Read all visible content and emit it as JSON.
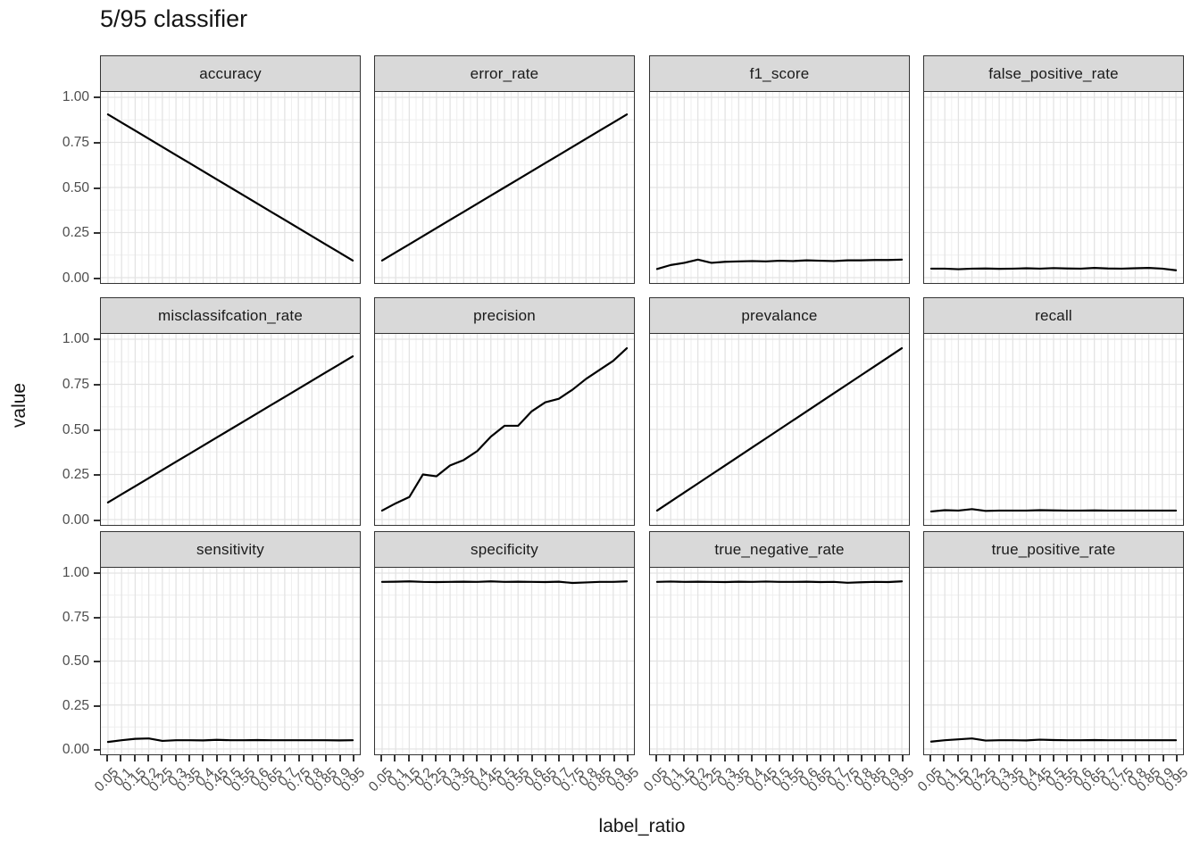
{
  "title": "5/95 classifier",
  "axis": {
    "xlabel": "label_ratio",
    "ylabel": "value"
  },
  "colors": {
    "line": "#000000",
    "strip_fill": "#d9d9d9",
    "strip_border": "#333333",
    "panel_border": "#333333",
    "grid_major": "#e3e3e3",
    "grid_minor": "#efefef",
    "tick_mark": "#333333",
    "tick_text": "#4d4d4d",
    "text": "#141414"
  },
  "chart_data": {
    "type": "line",
    "title": "5/95 classifier",
    "xlabel": "label_ratio",
    "ylabel": "value",
    "layout": "facet_wrap 3 rows x 4 cols",
    "grid": "on",
    "legend": "none",
    "ylim": [
      0,
      1
    ],
    "y_tick_labels": [
      "0.00",
      "0.25",
      "0.50",
      "0.75",
      "1.00"
    ],
    "y_ticks": [
      0,
      0.25,
      0.5,
      0.75,
      1.0
    ],
    "x": [
      0.05,
      0.1,
      0.15,
      0.2,
      0.25,
      0.3,
      0.35,
      0.4,
      0.45,
      0.5,
      0.55,
      0.6,
      0.65,
      0.7,
      0.75,
      0.8,
      0.85,
      0.9,
      0.95
    ],
    "x_tick_labels": [
      "0.05",
      "0.1",
      "0.15",
      "0.2",
      "0.25",
      "0.3",
      "0.35",
      "0.4",
      "0.45",
      "0.5",
      "0.55",
      "0.6",
      "0.65",
      "0.7",
      "0.75",
      "0.8",
      "0.85",
      "0.9",
      "0.95"
    ],
    "panels": [
      {
        "name": "accuracy",
        "values": [
          0.905,
          0.86,
          0.815,
          0.77,
          0.725,
          0.68,
          0.635,
          0.59,
          0.545,
          0.5,
          0.455,
          0.41,
          0.365,
          0.32,
          0.275,
          0.23,
          0.185,
          0.14,
          0.095
        ]
      },
      {
        "name": "error_rate",
        "values": [
          0.095,
          0.14,
          0.185,
          0.23,
          0.275,
          0.32,
          0.365,
          0.41,
          0.455,
          0.5,
          0.545,
          0.59,
          0.635,
          0.68,
          0.725,
          0.77,
          0.815,
          0.86,
          0.905
        ]
      },
      {
        "name": "f1_score",
        "values": [
          0.048,
          0.07,
          0.082,
          0.1,
          0.082,
          0.088,
          0.09,
          0.092,
          0.09,
          0.094,
          0.092,
          0.096,
          0.094,
          0.092,
          0.096,
          0.096,
          0.098,
          0.098,
          0.1
        ]
      },
      {
        "name": "false_positive_rate",
        "values": [
          0.05,
          0.05,
          0.047,
          0.05,
          0.051,
          0.049,
          0.05,
          0.052,
          0.05,
          0.053,
          0.051,
          0.05,
          0.054,
          0.051,
          0.05,
          0.052,
          0.054,
          0.05,
          0.041
        ]
      },
      {
        "name": "misclassifcation_rate",
        "values": [
          0.095,
          0.14,
          0.185,
          0.23,
          0.275,
          0.32,
          0.365,
          0.41,
          0.455,
          0.5,
          0.545,
          0.59,
          0.635,
          0.68,
          0.725,
          0.77,
          0.815,
          0.86,
          0.905
        ]
      },
      {
        "name": "precision",
        "values": [
          0.05,
          0.09,
          0.125,
          0.25,
          0.24,
          0.3,
          0.33,
          0.38,
          0.46,
          0.52,
          0.52,
          0.6,
          0.65,
          0.67,
          0.72,
          0.78,
          0.83,
          0.88,
          0.95
        ]
      },
      {
        "name": "prevalance",
        "values": [
          0.05,
          0.1,
          0.15,
          0.2,
          0.25,
          0.3,
          0.35,
          0.4,
          0.45,
          0.5,
          0.55,
          0.6,
          0.65,
          0.7,
          0.75,
          0.8,
          0.85,
          0.9,
          0.95
        ]
      },
      {
        "name": "recall",
        "values": [
          0.045,
          0.052,
          0.05,
          0.058,
          0.048,
          0.05,
          0.05,
          0.05,
          0.052,
          0.051,
          0.05,
          0.05,
          0.051,
          0.05,
          0.05,
          0.05,
          0.05,
          0.05,
          0.05
        ]
      },
      {
        "name": "sensitivity",
        "values": [
          0.04,
          0.05,
          0.058,
          0.06,
          0.046,
          0.05,
          0.05,
          0.049,
          0.052,
          0.05,
          0.05,
          0.051,
          0.05,
          0.05,
          0.05,
          0.05,
          0.05,
          0.049,
          0.05
        ]
      },
      {
        "name": "specificity",
        "values": [
          0.95,
          0.951,
          0.953,
          0.95,
          0.949,
          0.95,
          0.951,
          0.95,
          0.953,
          0.95,
          0.951,
          0.95,
          0.949,
          0.951,
          0.944,
          0.947,
          0.95,
          0.95,
          0.953
        ]
      },
      {
        "name": "true_negative_rate",
        "values": [
          0.95,
          0.952,
          0.95,
          0.951,
          0.95,
          0.949,
          0.951,
          0.95,
          0.952,
          0.95,
          0.95,
          0.951,
          0.949,
          0.95,
          0.945,
          0.948,
          0.95,
          0.949,
          0.953
        ]
      },
      {
        "name": "true_positive_rate",
        "values": [
          0.042,
          0.05,
          0.055,
          0.06,
          0.048,
          0.05,
          0.05,
          0.049,
          0.053,
          0.051,
          0.05,
          0.05,
          0.051,
          0.05,
          0.05,
          0.05,
          0.05,
          0.05,
          0.05
        ]
      }
    ]
  }
}
